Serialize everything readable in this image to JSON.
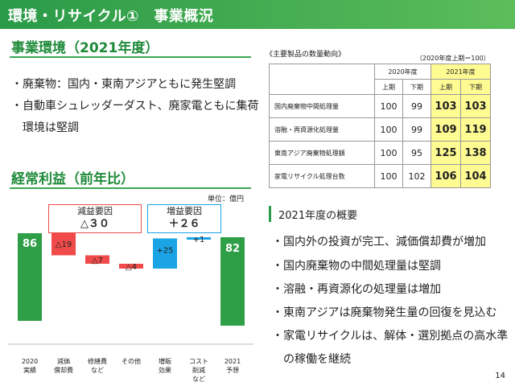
{
  "header": {
    "title": "環境・リサイクル①　事業概況"
  },
  "business_env": {
    "title": "事業環境（2021年度）",
    "bullets": [
      "・廃棄物：国内・東南アジアともに発生堅調",
      "・自動車シュレッダーダスト、廃家電ともに集荷",
      "　環境は堅調"
    ]
  },
  "table": {
    "title": "《主要製品の数量動向》",
    "note": "（2020年度上期＝100）",
    "year_headers": [
      "2020年度",
      "2021年度"
    ],
    "half_headers": [
      "上期",
      "下期",
      "上期",
      "下期"
    ],
    "rows": [
      {
        "label": "国内廃棄物中間処理量",
        "values": [
          "100",
          "99",
          "103",
          "103"
        ]
      },
      {
        "label": "溶融・再資源化処理量",
        "values": [
          "100",
          "99",
          "109",
          "119"
        ]
      },
      {
        "label": "東南アジア廃棄物処理額",
        "values": [
          "100",
          "95",
          "125",
          "138"
        ]
      },
      {
        "label": "家電リサイクル処理台数",
        "values": [
          "100",
          "102",
          "106",
          "104"
        ]
      }
    ],
    "highlight_color": "#fffb93"
  },
  "profit": {
    "title": "経常利益（前年比）",
    "unit": "単位：億円",
    "decrease_box": {
      "label": "減益要因",
      "value": "△３０"
    },
    "increase_box": {
      "label": "増益要因",
      "value": "＋２６"
    }
  },
  "chart_data": {
    "type": "bar",
    "subtype": "waterfall",
    "categories": [
      "2020\n実績",
      "減価\n償却費",
      "修繕費\nなど",
      "その他",
      "増販\n効果",
      "コスト\n削減\nなど",
      "2021\n予想"
    ],
    "values": [
      86,
      -19,
      -7,
      -4,
      25,
      1,
      82
    ],
    "value_labels": [
      "86",
      "△19",
      "△7",
      "△4",
      "+25",
      "+1",
      "82"
    ],
    "kinds": [
      "total",
      "decrease",
      "decrease",
      "decrease",
      "increase",
      "increase",
      "total"
    ],
    "colors": {
      "total": "#2e9e47",
      "decrease": "#f04a4a",
      "increase": "#1aa4e6"
    }
  },
  "overview": {
    "title": "2021年度の概要",
    "bullets": [
      "・国内外の投資が完工、減価償却費が増加",
      "・国内廃棄物の中間処理量は堅調",
      "・溶融・再資源化の処理量は増加",
      "・東南アジアは廃棄物発生量の回復を見込む",
      "・家電リサイクルは、解体・選別拠点の高水準",
      "　の稼働を継続"
    ]
  },
  "page_number": "14"
}
